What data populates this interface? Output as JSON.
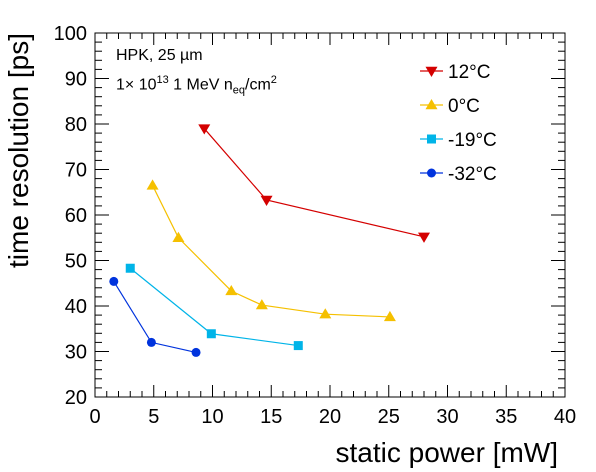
{
  "chart_data": {
    "type": "line",
    "title": "",
    "xlabel": "static power [mW]",
    "ylabel": "time resolution [ps]",
    "xlim": [
      0,
      40
    ],
    "ylim": [
      20,
      100
    ],
    "xticks": [
      "0",
      "5",
      "10",
      "15",
      "20",
      "25",
      "30",
      "35",
      "40"
    ],
    "yticks": [
      "20",
      "30",
      "40",
      "50",
      "60",
      "70",
      "80",
      "90",
      "100"
    ],
    "grid": false,
    "legend_position": "top-right",
    "annotations": {
      "line1": "HPK, 25 µm",
      "line2_prefix": "1× 10",
      "line2_exp": "13",
      "line2_mid": " 1 MeV n",
      "line2_sub": "eq",
      "line2_tail": "/cm",
      "line2_tail_exp": "2"
    },
    "series": [
      {
        "name": "12°C",
        "color": "#d40000",
        "marker": "triangle-down",
        "x": [
          9.3,
          14.6,
          28.0
        ],
        "y": [
          79,
          63.3,
          55.2
        ]
      },
      {
        "name": "0°C",
        "color": "#f5c000",
        "marker": "triangle-up",
        "x": [
          4.9,
          7.1,
          11.6,
          14.2,
          19.6,
          25.1
        ],
        "y": [
          66.5,
          55,
          43.3,
          40.2,
          38.2,
          37.6
        ]
      },
      {
        "name": "-19°C",
        "color": "#00b4e8",
        "marker": "square",
        "x": [
          3.0,
          9.9,
          17.3
        ],
        "y": [
          48.3,
          33.9,
          31.3
        ]
      },
      {
        "name": "-32°C",
        "color": "#0033dd",
        "marker": "circle",
        "x": [
          1.6,
          4.8,
          8.6
        ],
        "y": [
          45.4,
          32.0,
          29.8
        ]
      }
    ]
  }
}
